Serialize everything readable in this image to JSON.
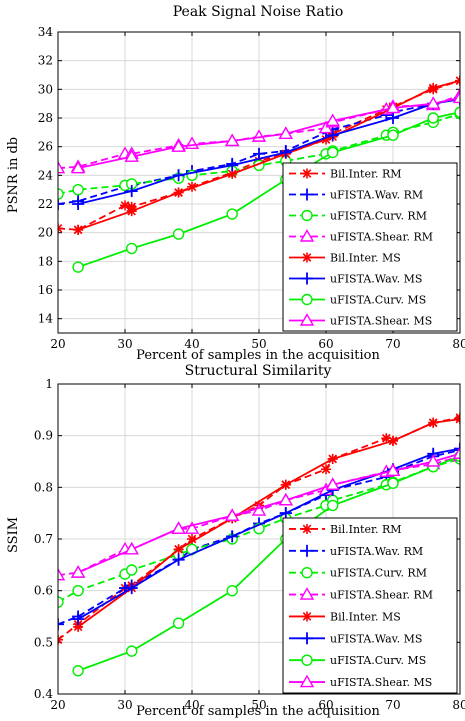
{
  "chart_data": [
    {
      "type": "line",
      "title": "Peak Signal Noise Ratio",
      "xlabel": "Percent of samples in the acquisition",
      "ylabel": "PSNR in db",
      "xlim": [
        20,
        80
      ],
      "ylim": [
        13,
        34
      ],
      "xticks": [
        20,
        30,
        40,
        50,
        60,
        70,
        80
      ],
      "yticks": [
        14,
        16,
        18,
        20,
        22,
        24,
        26,
        28,
        30,
        32,
        34
      ],
      "grid": true,
      "legend_position": "bottom-right",
      "x": [
        20,
        23,
        30,
        31,
        38,
        40,
        46,
        50,
        54,
        60,
        61,
        69,
        70,
        76,
        80
      ],
      "series": [
        {
          "name": "Bil.Inter. RM",
          "color": "#ff0000",
          "dash": true,
          "marker": "asterisk",
          "values": [
            20.3,
            20.2,
            21.9,
            21.8,
            22.8,
            23.2,
            24.2,
            25.0,
            25.5,
            26.5,
            26.9,
            28.6,
            28.8,
            30.0,
            30.6
          ]
        },
        {
          "name": "uFISTA.Wav. RM",
          "color": "#0000ff",
          "dash": true,
          "marker": "plus",
          "values": [
            22.0,
            22.2,
            23.2,
            23.3,
            24.0,
            24.3,
            24.8,
            25.5,
            25.7,
            27.0,
            27.2,
            28.2,
            28.4,
            29.0,
            29.4
          ]
        },
        {
          "name": "uFISTA.Curv. RM",
          "color": "#00ee00",
          "dash": true,
          "marker": "circle",
          "values": [
            22.7,
            23.0,
            23.3,
            23.4,
            23.8,
            24.0,
            24.3,
            24.7,
            25.0,
            25.5,
            25.7,
            26.8,
            27.0,
            27.7,
            28.3
          ]
        },
        {
          "name": "uFISTA.Shear. RM",
          "color": "#ff00ff",
          "dash": true,
          "marker": "triangle",
          "values": [
            24.5,
            24.6,
            25.5,
            25.5,
            26.1,
            26.2,
            26.4,
            26.7,
            26.9,
            27.3,
            27.7,
            28.6,
            28.8,
            28.9,
            29.6
          ]
        },
        {
          "name": "Bil.Inter. MS",
          "color": "#ff0000",
          "dash": false,
          "marker": "asterisk",
          "values": [
            null,
            20.2,
            null,
            21.5,
            22.8,
            null,
            24.1,
            null,
            25.5,
            null,
            26.7,
            null,
            28.7,
            30.1,
            30.6
          ]
        },
        {
          "name": "uFISTA.Wav. MS",
          "color": "#0000ff",
          "dash": false,
          "marker": "plus",
          "values": [
            null,
            22.0,
            null,
            22.9,
            24.0,
            null,
            24.7,
            null,
            25.6,
            null,
            26.8,
            null,
            28.0,
            29.0,
            29.3
          ]
        },
        {
          "name": "uFISTA.Curv. MS",
          "color": "#00ee00",
          "dash": false,
          "marker": "circle",
          "values": [
            null,
            17.6,
            null,
            18.9,
            19.9,
            null,
            21.3,
            null,
            23.7,
            null,
            25.6,
            null,
            26.8,
            28.0,
            28.4
          ]
        },
        {
          "name": "uFISTA.Shear. MS",
          "color": "#ff00ff",
          "dash": false,
          "marker": "triangle",
          "values": [
            null,
            24.5,
            null,
            25.3,
            26.0,
            null,
            26.4,
            null,
            26.9,
            null,
            27.8,
            null,
            28.7,
            29.0,
            29.4
          ]
        }
      ]
    },
    {
      "type": "line",
      "title": "Structural Similarity",
      "xlabel": "Percent of samples in the acquisition",
      "ylabel": "SSIM",
      "xlim": [
        20,
        80
      ],
      "ylim": [
        0.4,
        1.0
      ],
      "xticks": [
        20,
        30,
        40,
        50,
        60,
        70,
        80
      ],
      "yticks": [
        0.4,
        0.5,
        0.6,
        0.7,
        0.8,
        0.9,
        1.0
      ],
      "ytick_labels": [
        "0.4",
        "0.5",
        "0.6",
        "0.7",
        "0.8",
        "0.9",
        "1"
      ],
      "grid": true,
      "legend_position": "bottom-right",
      "x": [
        20,
        23,
        30,
        31,
        38,
        40,
        46,
        50,
        54,
        60,
        61,
        69,
        70,
        76,
        80
      ],
      "series": [
        {
          "name": "Bil.Inter. RM",
          "color": "#ff0000",
          "dash": true,
          "marker": "asterisk",
          "values": [
            0.505,
            0.535,
            0.605,
            0.61,
            0.68,
            0.7,
            0.74,
            0.765,
            0.805,
            0.835,
            0.855,
            0.895,
            0.89,
            0.925,
            0.935
          ]
        },
        {
          "name": "uFISTA.Wav. RM",
          "color": "#0000ff",
          "dash": true,
          "marker": "plus",
          "values": [
            0.535,
            0.55,
            0.605,
            0.61,
            0.66,
            0.68,
            0.705,
            0.73,
            0.75,
            0.785,
            0.795,
            0.82,
            0.83,
            0.86,
            0.872
          ]
        },
        {
          "name": "uFISTA.Curv. RM",
          "color": "#00ee00",
          "dash": true,
          "marker": "circle",
          "values": [
            0.578,
            0.6,
            0.632,
            0.64,
            0.67,
            0.68,
            0.7,
            0.72,
            0.74,
            0.765,
            0.775,
            0.805,
            0.81,
            0.84,
            0.855
          ]
        },
        {
          "name": "uFISTA.Shear. RM",
          "color": "#ff00ff",
          "dash": true,
          "marker": "triangle",
          "values": [
            0.63,
            0.635,
            0.68,
            0.68,
            0.72,
            0.72,
            0.745,
            0.755,
            0.775,
            0.795,
            0.805,
            0.83,
            0.833,
            0.845,
            0.86
          ]
        },
        {
          "name": "Bil.Inter. MS",
          "color": "#ff0000",
          "dash": false,
          "marker": "asterisk",
          "values": [
            null,
            0.53,
            null,
            0.605,
            0.68,
            null,
            0.74,
            null,
            0.805,
            null,
            0.855,
            null,
            0.89,
            0.925,
            0.932
          ]
        },
        {
          "name": "uFISTA.Wav. MS",
          "color": "#0000ff",
          "dash": false,
          "marker": "plus",
          "values": [
            null,
            0.545,
            null,
            0.605,
            0.66,
            null,
            0.705,
            null,
            0.75,
            null,
            0.795,
            null,
            0.835,
            0.865,
            0.875
          ]
        },
        {
          "name": "uFISTA.Curv. MS",
          "color": "#00ee00",
          "dash": false,
          "marker": "circle",
          "values": [
            null,
            0.445,
            null,
            0.483,
            0.537,
            null,
            0.6,
            null,
            0.7,
            null,
            0.765,
            null,
            0.808,
            0.84,
            0.86
          ]
        },
        {
          "name": "uFISTA.Shear. MS",
          "color": "#ff00ff",
          "dash": false,
          "marker": "triangle",
          "values": [
            null,
            0.635,
            null,
            0.68,
            0.72,
            null,
            0.745,
            null,
            0.775,
            null,
            0.805,
            null,
            0.832,
            0.85,
            0.865
          ]
        }
      ]
    }
  ]
}
